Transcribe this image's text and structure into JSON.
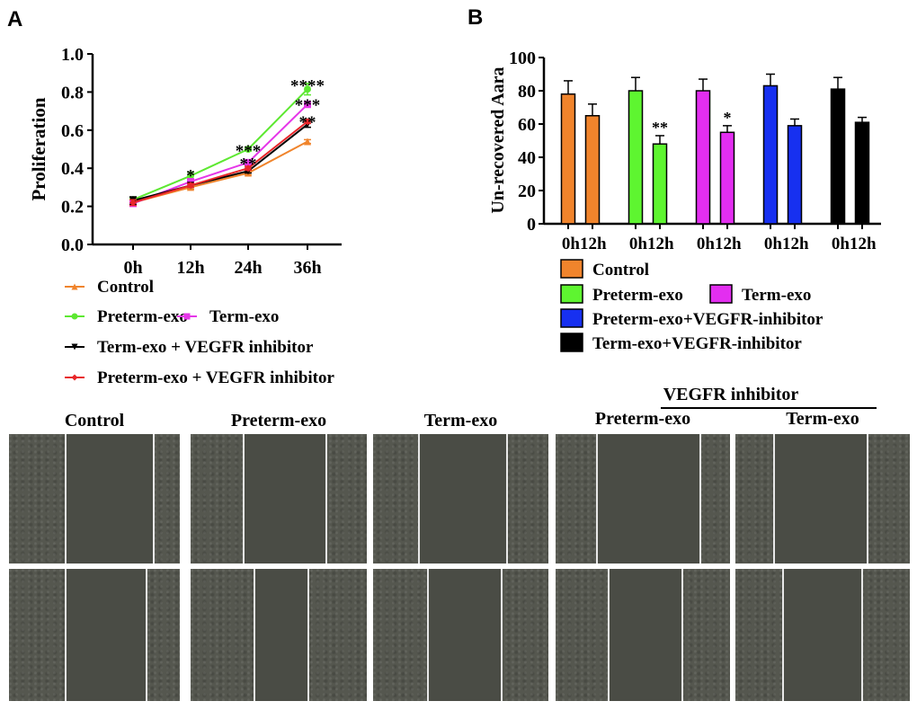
{
  "panels": {
    "a": "A",
    "b": "B"
  },
  "chart_data": [
    {
      "type": "line",
      "ylabel": "Proliferation",
      "categories": [
        "0h",
        "12h",
        "24h",
        "36h"
      ],
      "ylim": [
        0,
        1.0
      ],
      "yticks": [
        "0.0",
        "0.2",
        "0.4",
        "0.6",
        "0.8",
        "1.0"
      ],
      "grid": false,
      "legend": "bottom",
      "series": [
        {
          "name": "Control",
          "color": "#f0842c",
          "marker": "triangle",
          "values": [
            0.22,
            0.3,
            0.375,
            0.54
          ],
          "err": [
            0.01,
            0.01,
            0.01,
            0.01
          ]
        },
        {
          "name": "Preterm-exo",
          "color": "#5de831",
          "marker": "circle",
          "values": [
            0.235,
            0.36,
            0.5,
            0.815
          ],
          "err": [
            0.01,
            0.02,
            0.01,
            0.03
          ]
        },
        {
          "name": "Term-exo",
          "color": "#e536e8",
          "marker": "square",
          "values": [
            0.215,
            0.33,
            0.43,
            0.735
          ],
          "err": [
            0.01,
            0.01,
            0.01,
            0.015
          ]
        },
        {
          "name": "Term-exo + VEGFR inhibitor",
          "color": "#000000",
          "marker": "triangle-down",
          "values": [
            0.23,
            0.31,
            0.385,
            0.63
          ],
          "err": [
            0.02,
            0.01,
            0.01,
            0.015
          ]
        },
        {
          "name": "Preterm-exo + VEGFR inhibitor",
          "color": "#e8262a",
          "marker": "diamond",
          "values": [
            0.22,
            0.31,
            0.4,
            0.645
          ],
          "err": [
            0.015,
            0.01,
            0.01,
            0.01
          ]
        }
      ],
      "annotations": [
        {
          "x": "12h",
          "y": 0.39,
          "text": "*"
        },
        {
          "x": "24h",
          "y": 0.52,
          "text": "***"
        },
        {
          "x": "24h",
          "y": 0.45,
          "text": "**"
        },
        {
          "x": "36h",
          "y": 0.86,
          "text": "****"
        },
        {
          "x": "36h",
          "y": 0.76,
          "text": "***"
        },
        {
          "x": "36h",
          "y": 0.67,
          "text": "**"
        }
      ]
    },
    {
      "type": "bar",
      "ylabel": "Un-recovered Aara",
      "ylim": [
        0,
        100
      ],
      "yticks": [
        "0",
        "20",
        "40",
        "60",
        "80",
        "100"
      ],
      "grid": false,
      "legend": "bottom",
      "categories": [
        "0h",
        "12h"
      ],
      "series": [
        {
          "name": "Control",
          "color": "#f0842c",
          "values": [
            78,
            65
          ],
          "err": [
            8,
            7
          ],
          "sig": [
            "",
            ""
          ]
        },
        {
          "name": "Preterm-exo",
          "color": "#5ef530",
          "values": [
            80,
            48
          ],
          "err": [
            8,
            5
          ],
          "sig": [
            "",
            "**"
          ]
        },
        {
          "name": "Term-exo",
          "color": "#e32ef0",
          "values": [
            80,
            55
          ],
          "err": [
            7,
            4
          ],
          "sig": [
            "",
            "*"
          ]
        },
        {
          "name": "Preterm-exo+VEGFR-inhibitor",
          "color": "#1730f0",
          "values": [
            83,
            59
          ],
          "err": [
            7,
            4
          ],
          "sig": [
            "",
            ""
          ]
        },
        {
          "name": "Term-exo+VEGFR-inhibitor",
          "color": "#000000",
          "values": [
            81,
            61
          ],
          "err": [
            7,
            3
          ],
          "sig": [
            "",
            ""
          ]
        }
      ]
    }
  ],
  "micrographs": {
    "group_label": "VEGFR inhibitor",
    "columns": [
      "Control",
      "Preterm-exo",
      "Term-exo",
      "Preterm-exo",
      "Term-exo"
    ]
  }
}
